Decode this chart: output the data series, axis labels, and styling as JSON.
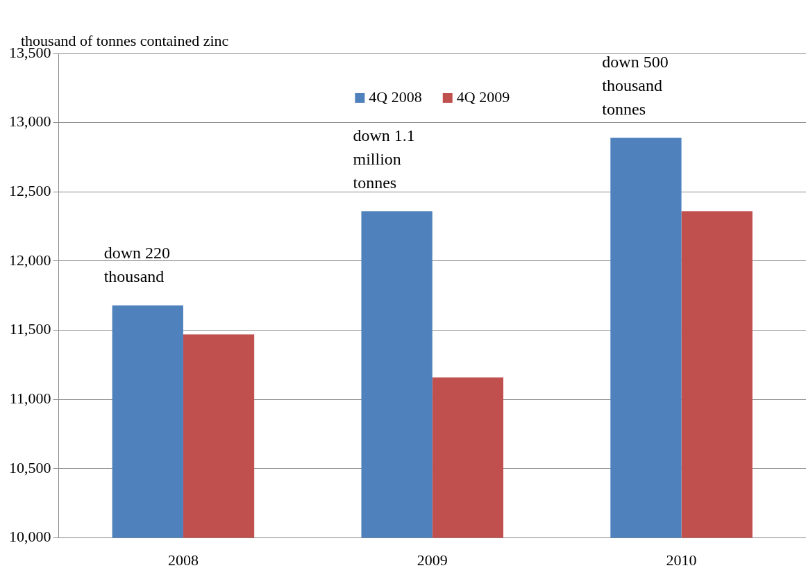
{
  "chart_data": {
    "type": "bar",
    "ylabel": "thousand of tonnes contained zinc",
    "categories": [
      "2008",
      "2009",
      "2010"
    ],
    "series": [
      {
        "name": "4Q 2008",
        "color": "#4f81bd",
        "values": [
          11680,
          12360,
          12890
        ]
      },
      {
        "name": "4Q 2009",
        "color": "#c0504d",
        "values": [
          11470,
          11160,
          12360
        ]
      }
    ],
    "ylim": [
      10000,
      13500
    ],
    "yticks": [
      {
        "value": 10000,
        "label": "10,000"
      },
      {
        "value": 10500,
        "label": "10,500"
      },
      {
        "value": 11000,
        "label": "11,000"
      },
      {
        "value": 11500,
        "label": "11,500"
      },
      {
        "value": 12000,
        "label": "12,000"
      },
      {
        "value": 12500,
        "label": "12,500"
      },
      {
        "value": 13000,
        "label": "13,000"
      },
      {
        "value": 13500,
        "label": "13,500"
      }
    ],
    "grid": "y",
    "legend": "top",
    "annotations": [
      "down 220 thousand",
      "down 1.1 million tonnes",
      "down 500 thousand tonnes"
    ]
  }
}
